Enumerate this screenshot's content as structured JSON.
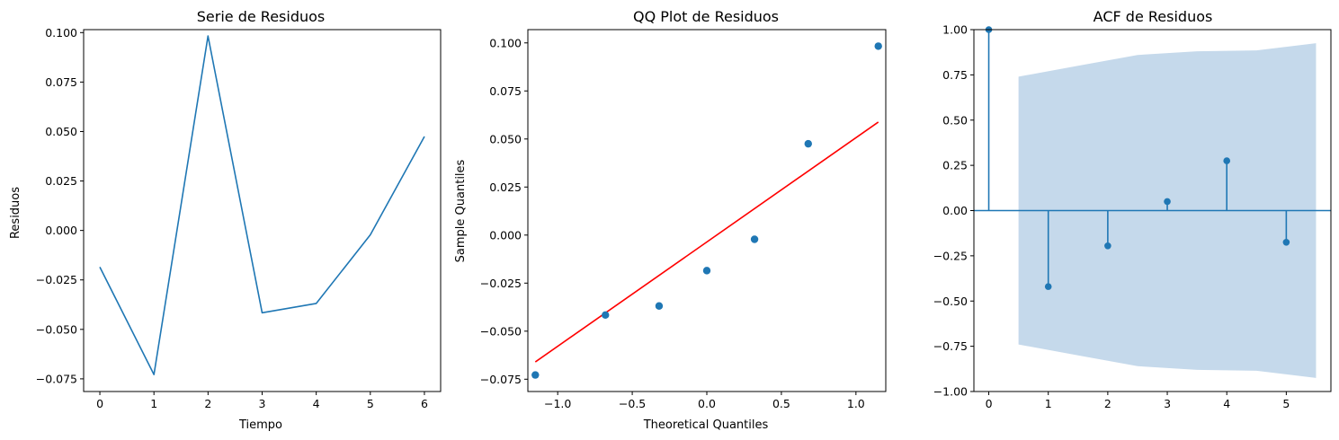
{
  "chart_data": [
    {
      "type": "line",
      "title": "Serie de Residuos",
      "xlabel": "Tiempo",
      "ylabel": "Residuos",
      "xlim": [
        -0.3,
        6.3
      ],
      "ylim": [
        -0.0814,
        0.1015
      ],
      "xticks": [
        0,
        1,
        2,
        3,
        4,
        5,
        6
      ],
      "xtick_labels": [
        "0",
        "1",
        "2",
        "3",
        "4",
        "5",
        "6"
      ],
      "yticks": [
        -0.075,
        -0.05,
        -0.025,
        0.0,
        0.025,
        0.05,
        0.075,
        0.1
      ],
      "ytick_labels": [
        "−0.075",
        "−0.050",
        "−0.025",
        "0.000",
        "0.025",
        "0.050",
        "0.075",
        "0.100"
      ],
      "x": [
        0,
        1,
        2,
        3,
        4,
        5,
        6
      ],
      "y": [
        -0.0185,
        -0.0728,
        0.0983,
        -0.0416,
        -0.0369,
        -0.0022,
        0.0475
      ],
      "color": "#1f77b4"
    },
    {
      "type": "scatter",
      "title": "QQ Plot de Residuos",
      "xlabel": "Theoretical Quantiles",
      "ylabel": "Sample Quantiles",
      "xlim": [
        -1.2,
        1.2
      ],
      "ylim": [
        -0.0814,
        0.1069
      ],
      "xticks": [
        -1.0,
        -0.5,
        0.0,
        0.5,
        1.0
      ],
      "xtick_labels": [
        "−1.0",
        "−0.5",
        "0.0",
        "0.5",
        "1.0"
      ],
      "yticks": [
        -0.075,
        -0.05,
        -0.025,
        0.0,
        0.025,
        0.05,
        0.075,
        0.1
      ],
      "ytick_labels": [
        "−0.075",
        "−0.050",
        "−0.025",
        "0.000",
        "0.025",
        "0.050",
        "0.075",
        "0.100"
      ],
      "x": [
        -1.15,
        -0.68,
        -0.32,
        0.0,
        0.32,
        0.68,
        1.15
      ],
      "y": [
        -0.0728,
        -0.0416,
        -0.0369,
        -0.0185,
        -0.0022,
        0.0475,
        0.0983
      ],
      "reference_line": {
        "x": [
          -1.15,
          1.15
        ],
        "y": [
          -0.066,
          0.0588
        ],
        "color": "#ff0000"
      },
      "color": "#1f77b4"
    },
    {
      "type": "stem",
      "title": "ACF de Residuos",
      "xlabel": "",
      "ylabel": "",
      "xlim": [
        -0.25,
        5.75
      ],
      "ylim": [
        -1.0,
        1.0
      ],
      "xticks": [
        0,
        1,
        2,
        3,
        4,
        5
      ],
      "xtick_labels": [
        "0",
        "1",
        "2",
        "3",
        "4",
        "5"
      ],
      "yticks": [
        -1.0,
        -0.75,
        -0.5,
        -0.25,
        0.0,
        0.25,
        0.5,
        0.75,
        1.0
      ],
      "ytick_labels": [
        "−1.00",
        "−0.75",
        "−0.50",
        "−0.25",
        "0.00",
        "0.25",
        "0.50",
        "0.75",
        "1.00"
      ],
      "lags": [
        0,
        1,
        2,
        3,
        4,
        5
      ],
      "values": [
        1.0,
        -0.42,
        -0.195,
        0.05,
        0.275,
        -0.175
      ],
      "confidence_band": {
        "x": [
          0.5,
          1.5,
          2.5,
          3.5,
          4.5,
          5.5
        ],
        "upper": [
          0.74,
          0.8,
          0.86,
          0.88,
          0.885,
          0.925
        ]
      },
      "color": "#1f77b4",
      "band_color": "#c5d9eb"
    }
  ]
}
